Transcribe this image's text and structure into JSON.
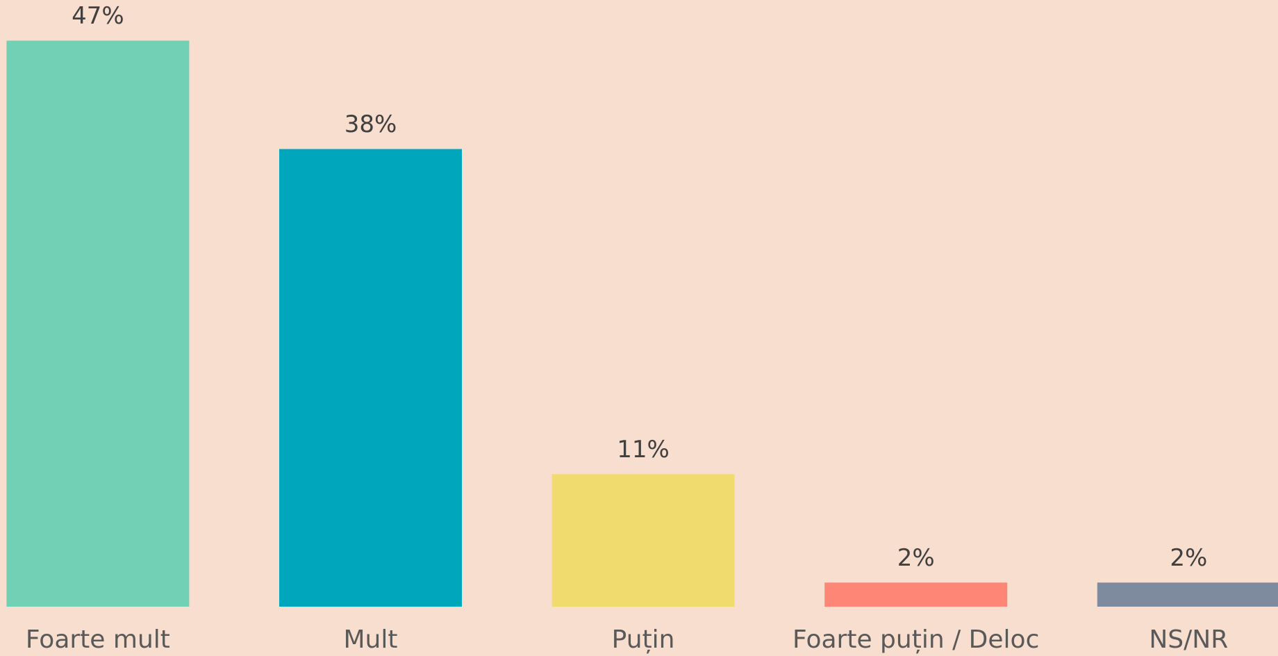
{
  "chart_data": {
    "type": "bar",
    "categories": [
      "Foarte mult",
      "Mult",
      "Puțin",
      "Foarte puțin / Deloc",
      "NS/NR"
    ],
    "values": [
      47,
      38,
      11,
      2,
      2
    ],
    "value_labels": [
      "47%",
      "38%",
      "11%",
      "2%",
      "2%"
    ],
    "colors": [
      "#72d0b4",
      "#00a6bb",
      "#f0dc6e",
      "#fd8676",
      "#7e8a9e"
    ]
  }
}
